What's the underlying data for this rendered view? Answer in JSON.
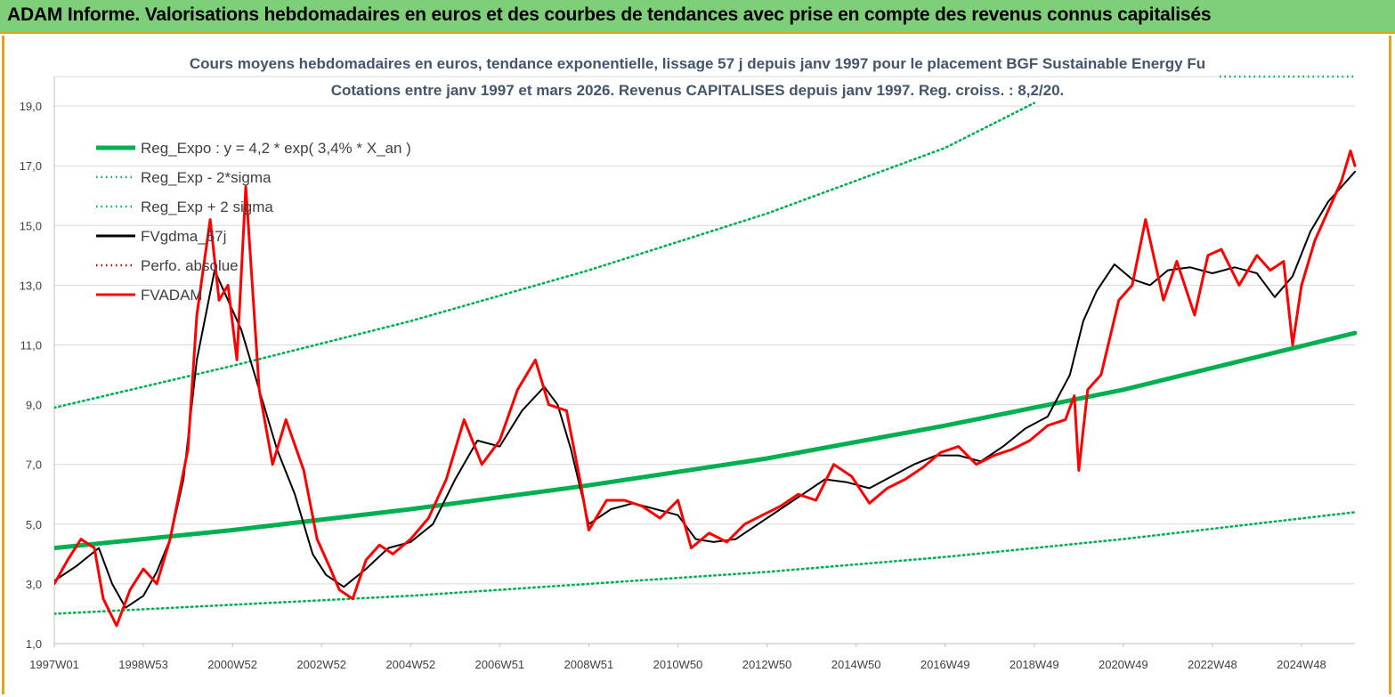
{
  "header": {
    "title": "ADAM Informe. Valorisations hebdomadaires en euros et des courbes de tendances avec prise en compte des revenus connus capitalisés"
  },
  "chart_data": {
    "type": "line",
    "title_line1": "Cours moyens hebdomadaires en euros, tendance exponentielle, lissage 57 j depuis janv 1997  pour le placement BGF Sustainable Energy Fu",
    "title_line2": "Cotations entre janv 1997 et mars 2026. Revenus CAPITALISES depuis janv 1997. Reg. croiss. : 8,2/20.",
    "x_tick_labels": [
      "1997W01",
      "1998W53",
      "2000W52",
      "2002W52",
      "2004W52",
      "2006W51",
      "2008W51",
      "2010W50",
      "2012W50",
      "2014W50",
      "2016W49",
      "2018W49",
      "2020W49",
      "2022W48",
      "2024W48"
    ],
    "x_tick_years": [
      1997.0,
      1999.0,
      2001.0,
      2003.0,
      2005.0,
      2007.0,
      2009.0,
      2011.0,
      2013.0,
      2015.0,
      2017.0,
      2019.0,
      2021.0,
      2023.0,
      2025.0
    ],
    "y_tick_labels": [
      "1,0",
      "3,0",
      "5,0",
      "7,0",
      "9,0",
      "11,0",
      "13,0",
      "15,0",
      "17,0",
      "19,0"
    ],
    "y_ticks": [
      1,
      3,
      5,
      7,
      9,
      11,
      13,
      15,
      17,
      19
    ],
    "xlim": [
      1997.0,
      2026.2
    ],
    "ylim": [
      1,
      20
    ],
    "grid": true,
    "legend_position": "top-left",
    "series": [
      {
        "name": "Reg_Expo : y = 4,2 * exp( 3,4% *  X_an )",
        "color": "#00b050",
        "style": "solid",
        "x": [
          1997.0,
          2001.0,
          2005.0,
          2009.0,
          2013.0,
          2017.0,
          2021.0,
          2026.2
        ],
        "values": [
          4.2,
          4.8,
          5.5,
          6.3,
          7.2,
          8.3,
          9.5,
          11.4
        ]
      },
      {
        "name": "Reg_Exp - 2*sigma",
        "color": "#00b050",
        "style": "dotted",
        "x": [
          1997.0,
          2001.0,
          2005.0,
          2009.0,
          2013.0,
          2017.0,
          2021.0,
          2026.2
        ],
        "values": [
          2.0,
          2.3,
          2.6,
          3.0,
          3.4,
          3.9,
          4.5,
          5.4
        ]
      },
      {
        "name": "Reg_Exp + 2 sigma",
        "color": "#00b050",
        "style": "dotted",
        "x": [
          1997.0,
          2001.0,
          2005.0,
          2009.0,
          2013.0,
          2017.0,
          2019.0
        ],
        "values": [
          8.9,
          10.3,
          11.8,
          13.5,
          15.4,
          17.6,
          19.1
        ]
      },
      {
        "name": "FVgdma_57j",
        "color": "#000000",
        "style": "solid",
        "x": [
          1997.0,
          1997.5,
          1998.0,
          1998.3,
          1998.6,
          1999.0,
          1999.3,
          1999.6,
          1999.9,
          2000.2,
          2000.6,
          2000.9,
          2001.2,
          2001.5,
          2002.0,
          2002.4,
          2002.8,
          2003.1,
          2003.5,
          2004.0,
          2004.5,
          2005.0,
          2005.5,
          2006.0,
          2006.5,
          2007.0,
          2007.5,
          2008.0,
          2008.3,
          2008.6,
          2009.0,
          2009.5,
          2010.0,
          2010.5,
          2011.0,
          2011.4,
          2011.8,
          2012.3,
          2012.8,
          2013.3,
          2013.8,
          2014.3,
          2014.8,
          2015.3,
          2015.8,
          2016.3,
          2016.8,
          2017.3,
          2017.8,
          2018.3,
          2018.8,
          2019.3,
          2019.8,
          2020.1,
          2020.4,
          2020.8,
          2021.2,
          2021.6,
          2022.0,
          2022.5,
          2023.0,
          2023.5,
          2024.0,
          2024.4,
          2024.8,
          2025.2,
          2025.6,
          2026.2
        ],
        "values": [
          3.1,
          3.6,
          4.2,
          3.0,
          2.2,
          2.6,
          3.4,
          4.5,
          6.5,
          10.5,
          13.5,
          12.5,
          11.5,
          10.0,
          7.5,
          6.0,
          4.0,
          3.3,
          2.9,
          3.5,
          4.2,
          4.4,
          5.0,
          6.5,
          7.8,
          7.6,
          8.8,
          9.6,
          9.0,
          7.5,
          5.0,
          5.5,
          5.7,
          5.5,
          5.3,
          4.5,
          4.4,
          4.5,
          5.0,
          5.5,
          6.0,
          6.5,
          6.4,
          6.2,
          6.6,
          7.0,
          7.3,
          7.3,
          7.1,
          7.6,
          8.2,
          8.6,
          10.0,
          11.8,
          12.8,
          13.7,
          13.2,
          13.0,
          13.5,
          13.6,
          13.4,
          13.6,
          13.4,
          12.6,
          13.3,
          14.8,
          15.8,
          16.8
        ]
      },
      {
        "name": "Perfo. absolue",
        "color": "#c00000",
        "style": "dotted",
        "x": [],
        "values": []
      },
      {
        "name": "FVADAM",
        "color": "#ff0000",
        "style": "solid",
        "x": [
          1997.0,
          1997.3,
          1997.6,
          1997.9,
          1998.1,
          1998.4,
          1998.7,
          1999.0,
          1999.3,
          1999.6,
          1999.8,
          2000.0,
          2000.2,
          2000.5,
          2000.7,
          2000.9,
          2001.1,
          2001.3,
          2001.6,
          2001.9,
          2002.2,
          2002.6,
          2002.9,
          2003.2,
          2003.4,
          2003.7,
          2004.0,
          2004.3,
          2004.6,
          2005.0,
          2005.4,
          2005.8,
          2006.2,
          2006.6,
          2007.0,
          2007.4,
          2007.8,
          2008.1,
          2008.5,
          2008.8,
          2009.0,
          2009.4,
          2009.8,
          2010.2,
          2010.6,
          2011.0,
          2011.3,
          2011.7,
          2012.1,
          2012.5,
          2012.9,
          2013.3,
          2013.7,
          2014.1,
          2014.5,
          2014.9,
          2015.3,
          2015.7,
          2016.1,
          2016.5,
          2016.9,
          2017.3,
          2017.7,
          2018.1,
          2018.5,
          2018.9,
          2019.3,
          2019.7,
          2019.9,
          2020.0,
          2020.2,
          2020.5,
          2020.9,
          2021.2,
          2021.5,
          2021.9,
          2022.2,
          2022.6,
          2022.9,
          2023.2,
          2023.6,
          2024.0,
          2024.3,
          2024.6,
          2024.8,
          2025.0,
          2025.3,
          2025.6,
          2025.9,
          2026.1,
          2026.2
        ],
        "values": [
          3.0,
          3.8,
          4.5,
          4.2,
          2.5,
          1.6,
          2.8,
          3.5,
          3.0,
          4.5,
          6.0,
          7.5,
          12.0,
          15.2,
          12.5,
          13.0,
          10.5,
          16.3,
          9.5,
          7.0,
          8.5,
          6.8,
          4.5,
          3.5,
          2.8,
          2.5,
          3.8,
          4.3,
          4.0,
          4.5,
          5.2,
          6.5,
          8.5,
          7.0,
          7.8,
          9.5,
          10.5,
          9.0,
          8.8,
          6.5,
          4.8,
          5.8,
          5.8,
          5.6,
          5.2,
          5.8,
          4.2,
          4.7,
          4.4,
          5.0,
          5.3,
          5.6,
          6.0,
          5.8,
          7.0,
          6.6,
          5.7,
          6.2,
          6.5,
          6.9,
          7.4,
          7.6,
          7.0,
          7.3,
          7.5,
          7.8,
          8.3,
          8.5,
          9.3,
          6.8,
          9.5,
          10.0,
          12.5,
          13.0,
          15.2,
          12.5,
          13.8,
          12.0,
          14.0,
          14.2,
          13.0,
          14.0,
          13.5,
          13.8,
          11.0,
          13.0,
          14.5,
          15.5,
          16.5,
          17.5,
          17.0
        ]
      }
    ]
  }
}
